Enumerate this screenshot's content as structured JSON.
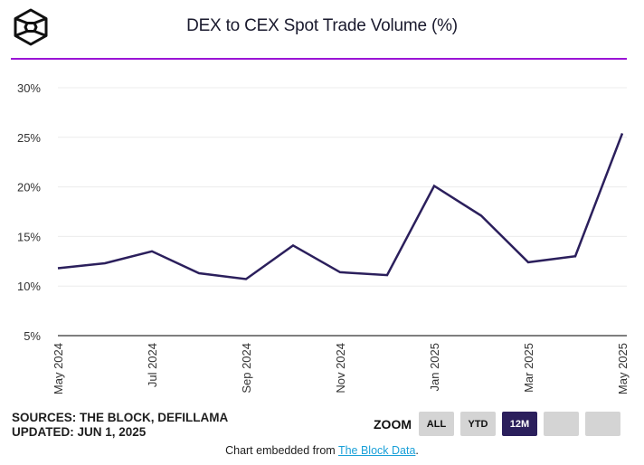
{
  "header": {
    "logo_icon": "the-block-cube-logo",
    "title": "DEX to CEX Spot Trade Volume (%)",
    "accent_color": "#9b14d6"
  },
  "chart_data": {
    "type": "line",
    "title": "DEX to CEX Spot Trade Volume (%)",
    "xlabel": "",
    "ylabel": "",
    "x": [
      "May 2024",
      "Jun 2024",
      "Jul 2024",
      "Aug 2024",
      "Sep 2024",
      "Oct 2024",
      "Nov 2024",
      "Dec 2024",
      "Jan 2025",
      "Feb 2025",
      "Mar 2025",
      "Apr 2025",
      "May 2025"
    ],
    "x_tick_labels": [
      "May 2024",
      "Jul 2024",
      "Sep 2024",
      "Nov 2024",
      "Jan 2025",
      "Mar 2025",
      "May 2025"
    ],
    "series": [
      {
        "name": "DEX to CEX Spot Trade Volume",
        "color": "#2b1f5c",
        "values": [
          11.8,
          12.3,
          13.5,
          11.3,
          10.7,
          14.1,
          11.4,
          11.1,
          20.1,
          17.1,
          12.4,
          13.0,
          25.4
        ]
      }
    ],
    "y_ticks": [
      5,
      10,
      15,
      20,
      25,
      30
    ],
    "y_tick_labels": [
      "5%",
      "10%",
      "15%",
      "20%",
      "25%",
      "30%"
    ],
    "ylim": [
      5,
      30
    ],
    "grid": true,
    "legend": "none"
  },
  "footer": {
    "sources": "SOURCES: THE BLOCK, DEFILLAMA",
    "updated": "UPDATED: JUN 1, 2025",
    "zoom_label": "ZOOM",
    "zoom_buttons": [
      {
        "label": "ALL",
        "active": false
      },
      {
        "label": "YTD",
        "active": false
      },
      {
        "label": "12M",
        "active": true
      },
      {
        "label": "",
        "active": false
      },
      {
        "label": "",
        "active": false
      }
    ],
    "embed_prefix": "Chart embedded from ",
    "embed_link": "The Block Data",
    "embed_suffix": "."
  }
}
